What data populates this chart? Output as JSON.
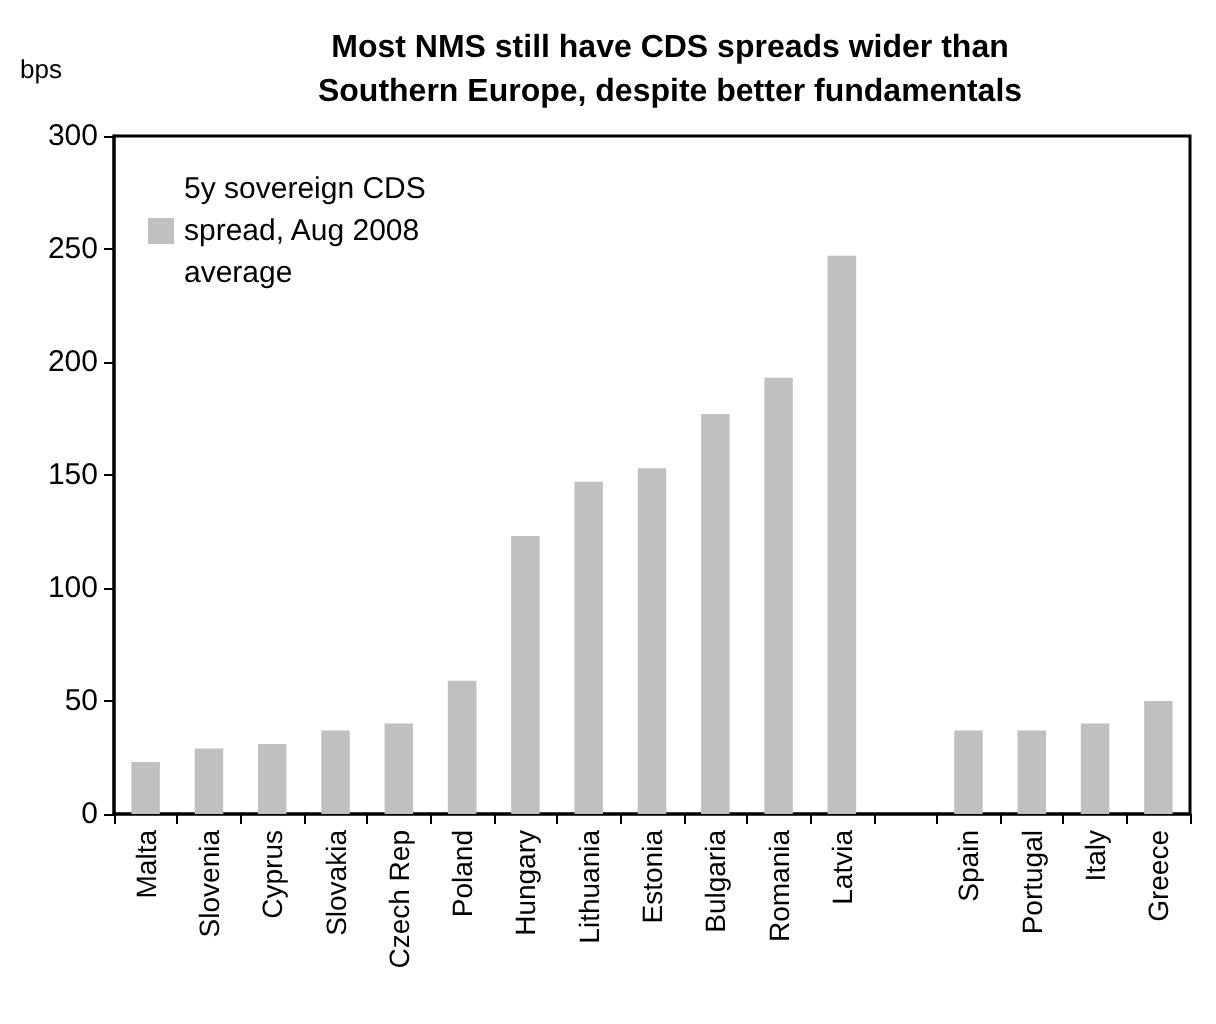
{
  "chart_data": {
    "type": "bar",
    "title": "Most NMS still have CDS spreads wider than\nSouthern Europe, despite better fundamentals",
    "ylabel": "bps",
    "categories": [
      "Malta",
      "Slovenia",
      "Cyprus",
      "Slovakia",
      "Czech Rep",
      "Poland",
      "Hungary",
      "Lithuania",
      "Estonia",
      "Bulgaria",
      "Romania",
      "Latvia",
      null,
      "Spain",
      "Portugal",
      "Italy",
      "Greece"
    ],
    "series": [
      {
        "name": "5y sovereign CDS\nspread, Aug 2008\naverage",
        "color": "#c0c0c0",
        "values": [
          23,
          29,
          31,
          37,
          40,
          59,
          123,
          147,
          153,
          177,
          193,
          247,
          null,
          37,
          37,
          40,
          50
        ]
      }
    ],
    "ylim": [
      0,
      300
    ],
    "yticks": [
      0,
      50,
      100,
      150,
      200,
      250,
      300
    ],
    "grid": false,
    "legend": "top left"
  }
}
